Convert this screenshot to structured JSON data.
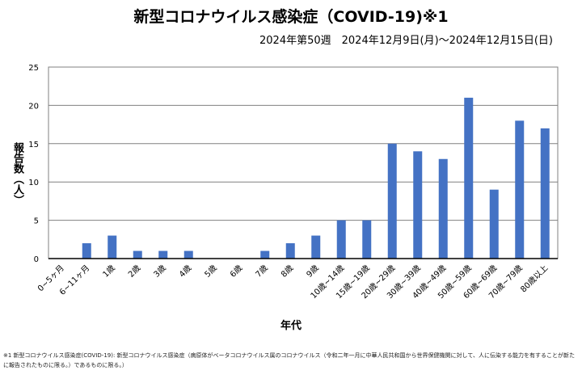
{
  "chart_data": {
    "type": "bar",
    "title": "新型コロナウイルス感染症（COVID-19)※1",
    "subtitle": "2024年第50週　2024年12月9日(月)～2024年12月15日(日)",
    "xlabel": "年代",
    "ylabel": "報告数（人）",
    "ylim": [
      0,
      25
    ],
    "yticks": [
      0,
      5,
      10,
      15,
      20,
      25
    ],
    "grid": true,
    "bar_color": "#4472C4",
    "categories": [
      "0~5ヶ月",
      "6~11ヶ月",
      "1歳",
      "2歳",
      "3歳",
      "4歳",
      "5歳",
      "6歳",
      "7歳",
      "8歳",
      "9歳",
      "10歳~14歳",
      "15歳~19歳",
      "20歳~29歳",
      "30歳~39歳",
      "40歳~49歳",
      "50歳~59歳",
      "60歳~69歳",
      "70歳~79歳",
      "80歳以上"
    ],
    "values": [
      0,
      2,
      3,
      1,
      1,
      1,
      0,
      0,
      1,
      2,
      3,
      5,
      5,
      15,
      14,
      13,
      21,
      9,
      18,
      17
    ]
  },
  "footnote": "※1 新型コロナウイルス感染症(COVID-19): 新型コロナウイルス感染症（病原体がベータコロナウイルス属のコロナウイルス（令和二年一月に中華人民共和国から世界保健機関に対して、人に伝染する能力を有することが新たに報告されたものに限る。）であるものに限る。）"
}
